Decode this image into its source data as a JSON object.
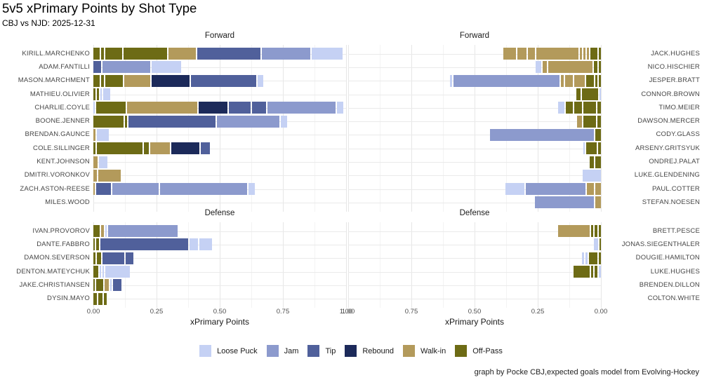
{
  "header": {
    "title": "5v5 xPrimary Points by Shot Type",
    "subtitle": "CBJ vs NJD: 2025-12-31"
  },
  "footer": {
    "caption": "graph by Pocke CBJ,expected goals model from Evolving-Hockey"
  },
  "colors": {
    "loose": "#c5d1f4",
    "jam": "#8c9acd",
    "tip": "#50609b",
    "rebound": "#1c2a5a",
    "walkin": "#b39a5b",
    "offpass": "#6d6b15"
  },
  "legend": [
    {
      "label": "Loose Puck",
      "color_key": "loose"
    },
    {
      "label": "Jam",
      "color_key": "jam"
    },
    {
      "label": "Tip",
      "color_key": "tip"
    },
    {
      "label": "Rebound",
      "color_key": "rebound"
    },
    {
      "label": "Walk-in",
      "color_key": "walkin"
    },
    {
      "label": "Off-Pass",
      "color_key": "offpass"
    }
  ],
  "chart_data": {
    "type": "bar",
    "stacked": true,
    "orientation": "horizontal",
    "x_axis": {
      "label": "xPrimary Points",
      "range": [
        0,
        1
      ],
      "ticks_left": [
        "0.00",
        "0.25",
        "0.50",
        "0.75",
        "1.00"
      ],
      "ticks_right": [
        "1.00",
        "0.75",
        "0.50",
        "0.25",
        "0.00"
      ]
    },
    "shot_types": [
      "Loose Puck",
      "Jam",
      "Tip",
      "Rebound",
      "Walk-in",
      "Off-Pass"
    ],
    "panels": [
      {
        "title": "Forward",
        "side": "left",
        "team": "CBJ",
        "players": [
          {
            "name": "KIRILL.MARCHENKO",
            "segments": [
              [
                "offpass",
                0.025
              ],
              [
                "offpass",
                0.011
              ],
              [
                "offpass",
                0.068
              ],
              [
                "offpass",
                0.173
              ],
              [
                "walkin",
                0.108
              ],
              [
                "tip",
                0.25
              ],
              [
                "jam",
                0.192
              ],
              [
                "loose",
                0.122
              ]
            ]
          },
          {
            "name": "ADAM.FANTILLI",
            "segments": [
              [
                "tip",
                0.031
              ],
              [
                "jam",
                0.188
              ],
              [
                "loose",
                0.118
              ]
            ]
          },
          {
            "name": "MASON.MARCHMENT",
            "segments": [
              [
                "offpass",
                0.025
              ],
              [
                "offpass",
                0.012
              ],
              [
                "offpass",
                0.07
              ],
              [
                "walkin",
                0.102
              ],
              [
                "rebound",
                0.15
              ],
              [
                "tip",
                0.258
              ],
              [
                "loose",
                0.023
              ]
            ]
          },
          {
            "name": "MATHIEU.OLIVIER",
            "segments": [
              [
                "offpass",
                0.008
              ],
              [
                "offpass",
                0.008
              ],
              [
                "loose",
                0.006
              ],
              [
                "loose",
                0.028
              ]
            ]
          },
          {
            "name": "CHARLIE.COYLE",
            "segments": [
              [
                "loose",
                0.004
              ],
              [
                "offpass",
                0.118
              ],
              [
                "walkin",
                0.278
              ],
              [
                "rebound",
                0.114
              ],
              [
                "tip",
                0.085
              ],
              [
                "tip",
                0.056
              ],
              [
                "jam",
                0.27
              ],
              [
                "loose",
                0.025
              ]
            ]
          },
          {
            "name": "BOONE.JENNER",
            "segments": [
              [
                "offpass",
                0.12
              ],
              [
                "offpass",
                0.007
              ],
              [
                "tip",
                0.344
              ],
              [
                "jam",
                0.247
              ],
              [
                "loose",
                0.024
              ]
            ]
          },
          {
            "name": "BRENDAN.GAUNCE",
            "segments": [
              [
                "walkin",
                0.008
              ],
              [
                "loose",
                0.048
              ]
            ]
          },
          {
            "name": "COLE.SILLINGER",
            "segments": [
              [
                "offpass",
                0.009
              ],
              [
                "offpass",
                0.181
              ],
              [
                "offpass",
                0.019
              ],
              [
                "walkin",
                0.078
              ],
              [
                "rebound",
                0.111
              ],
              [
                "tip",
                0.035
              ]
            ]
          },
          {
            "name": "KENT.JOHNSON",
            "segments": [
              [
                "walkin",
                0.018
              ],
              [
                "loose",
                0.032
              ]
            ]
          },
          {
            "name": "DMITRI.VORONKOV",
            "segments": [
              [
                "walkin",
                0.015
              ],
              [
                "walkin",
                0.09
              ]
            ]
          },
          {
            "name": "ZACH.ASTON-REESE",
            "segments": [
              [
                "walkin",
                0.006
              ],
              [
                "tip",
                0.058
              ],
              [
                "jam",
                0.182
              ],
              [
                "jam",
                0.345
              ],
              [
                "loose",
                0.025
              ]
            ]
          },
          {
            "name": "MILES.WOOD",
            "segments": []
          }
        ]
      },
      {
        "title": "Forward",
        "side": "right",
        "team": "NJD",
        "players": [
          {
            "name": "JACK.HUGHES",
            "segments": [
              [
                "offpass",
                0.007
              ],
              [
                "offpass",
                0.029
              ],
              [
                "walkin",
                0.008
              ],
              [
                "walkin",
                0.008
              ],
              [
                "walkin",
                0.008
              ],
              [
                "walkin",
                0.167
              ],
              [
                "walkin",
                0.027
              ],
              [
                "walkin",
                0.037
              ],
              [
                "walkin",
                0.05
              ]
            ]
          },
          {
            "name": "NICO.HISCHIER",
            "segments": [
              [
                "offpass",
                0.007
              ],
              [
                "offpass",
                0.013
              ],
              [
                "walkin",
                0.176
              ],
              [
                "walkin",
                0.018
              ],
              [
                "loose",
                0.023
              ]
            ]
          },
          {
            "name": "JESPER.BRATT",
            "segments": [
              [
                "offpass",
                0.008
              ],
              [
                "offpass",
                0.008
              ],
              [
                "offpass",
                0.03
              ],
              [
                "walkin",
                0.042
              ],
              [
                "walkin",
                0.031
              ],
              [
                "walkin",
                0.011
              ],
              [
                "jam",
                0.419
              ],
              [
                "loose",
                0.008
              ]
            ]
          },
          {
            "name": "CONNOR.BROWN",
            "segments": [
              [
                "loose",
                0.005
              ],
              [
                "offpass",
                0.065
              ],
              [
                "offpass",
                0.018
              ]
            ]
          },
          {
            "name": "TIMO.MEIER",
            "segments": [
              [
                "offpass",
                0.014
              ],
              [
                "offpass",
                0.05
              ],
              [
                "offpass",
                0.031
              ],
              [
                "offpass",
                0.027
              ],
              [
                "loose",
                0.026
              ]
            ]
          },
          {
            "name": "DAWSON.MERCER",
            "segments": [
              [
                "offpass",
                0.013
              ],
              [
                "offpass",
                0.051
              ],
              [
                "walkin",
                0.02
              ]
            ]
          },
          {
            "name": "CODY.GLASS",
            "segments": [
              [
                "offpass",
                0.021
              ],
              [
                "jam",
                0.412
              ]
            ]
          },
          {
            "name": "ARSENY.GRITSYUK",
            "segments": [
              [
                "offpass",
                0.01
              ],
              [
                "offpass",
                0.042
              ],
              [
                "loose",
                0.005
              ]
            ]
          },
          {
            "name": "ONDREJ.PALAT",
            "segments": [
              [
                "offpass",
                0.021
              ],
              [
                "offpass",
                0.018
              ]
            ]
          },
          {
            "name": "LUKE.GLENDENING",
            "segments": [
              [
                "loose",
                0.071
              ]
            ]
          },
          {
            "name": "PAUL.COTTER",
            "segments": [
              [
                "walkin",
                0.021
              ],
              [
                "walkin",
                0.028
              ],
              [
                "jam",
                0.237
              ],
              [
                "loose",
                0.076
              ]
            ]
          },
          {
            "name": "STEFAN.NOESEN",
            "segments": [
              [
                "walkin",
                0.021
              ],
              [
                "jam",
                0.233
              ]
            ]
          }
        ]
      },
      {
        "title": "Defense",
        "side": "left",
        "team": "CBJ",
        "players": [
          {
            "name": "IVAN.PROVOROV",
            "segments": [
              [
                "offpass",
                0.025
              ],
              [
                "walkin",
                0.012
              ],
              [
                "loose",
                0.004
              ],
              [
                "jam",
                0.274
              ]
            ]
          },
          {
            "name": "DANTE.FABBRO",
            "segments": [
              [
                "offpass",
                0.004
              ],
              [
                "offpass",
                0.012
              ],
              [
                "tip",
                0.347
              ],
              [
                "loose",
                0.032
              ],
              [
                "loose",
                0.049
              ]
            ]
          },
          {
            "name": "DAMON.SEVERSON",
            "segments": [
              [
                "offpass",
                0.009
              ],
              [
                "offpass",
                0.016
              ],
              [
                "tip",
                0.086
              ],
              [
                "tip",
                0.031
              ]
            ]
          },
          {
            "name": "DENTON.MATEYCHUK",
            "segments": [
              [
                "offpass",
                0.019
              ],
              [
                "loose",
                0.004
              ],
              [
                "loose",
                0.004
              ],
              [
                "loose",
                0.097
              ]
            ]
          },
          {
            "name": "JAKE.CHRISTIANSEN",
            "segments": [
              [
                "offpass",
                0.006
              ],
              [
                "offpass",
                0.028
              ],
              [
                "walkin",
                0.017
              ],
              [
                "loose",
                0.004
              ],
              [
                "tip",
                0.032
              ]
            ]
          },
          {
            "name": "DYSIN.MAYO",
            "segments": [
              [
                "offpass",
                0.013
              ],
              [
                "offpass",
                0.017
              ],
              [
                "offpass",
                0.012
              ]
            ]
          }
        ]
      },
      {
        "title": "Defense",
        "side": "right",
        "team": "NJD",
        "players": [
          {
            "name": "BRETT.PESCE",
            "segments": [
              [
                "offpass",
                0.009
              ],
              [
                "offpass",
                0.011
              ],
              [
                "offpass",
                0.009
              ],
              [
                "walkin",
                0.124
              ]
            ]
          },
          {
            "name": "JONAS.SIEGENTHALER",
            "segments": [
              [
                "offpass",
                0.005
              ],
              [
                "loose",
                0.018
              ]
            ]
          },
          {
            "name": "DOUGIE.HAMILTON",
            "segments": [
              [
                "offpass",
                0.007
              ],
              [
                "offpass",
                0.032
              ],
              [
                "loose",
                0.009
              ],
              [
                "loose",
                0.009
              ]
            ]
          },
          {
            "name": "LUKE.HUGHES",
            "segments": [
              [
                "loose",
                0.007
              ],
              [
                "offpass",
                0.012
              ],
              [
                "offpass",
                0.009
              ],
              [
                "offpass",
                0.064
              ]
            ]
          },
          {
            "name": "BRENDEN.DILLON",
            "segments": []
          },
          {
            "name": "COLTON.WHITE",
            "segments": []
          }
        ]
      }
    ]
  }
}
